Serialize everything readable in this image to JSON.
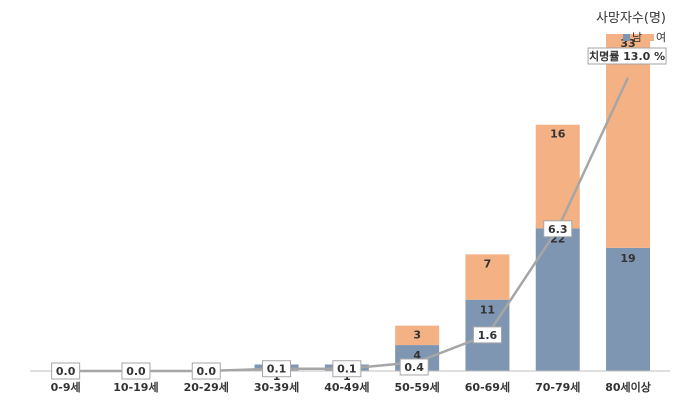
{
  "chart_data": {
    "type": "bar",
    "stacked": true,
    "secondary_line": true,
    "title": "사망자수(명)",
    "categories": [
      "0-9세",
      "10-19세",
      "20-29세",
      "30-39세",
      "40-49세",
      "50-59세",
      "60-69세",
      "70-79세",
      "80세이상"
    ],
    "series": [
      {
        "name": "남",
        "values": [
          0,
          0,
          0,
          1,
          1,
          4,
          11,
          22,
          19
        ],
        "color": "#7f96b2"
      },
      {
        "name": "여",
        "values": [
          0,
          0,
          0,
          0,
          0,
          3,
          7,
          16,
          33
        ],
        "color": "#f4b183"
      }
    ],
    "line_series": {
      "name": "치명률",
      "values": [
        0.0,
        0.0,
        0.0,
        0.1,
        0.1,
        0.4,
        1.6,
        6.3,
        13.0
      ],
      "labels": [
        "0.0",
        "0.0",
        "0.0",
        "0.1",
        "0.1",
        "0.4",
        "1.6",
        "6.3",
        "13.0 %"
      ],
      "color": "#a6a6a6"
    },
    "line_annotation": "치명률",
    "legend_position": "top-right",
    "ylim": [
      0,
      52
    ],
    "ylim_rate": [
      0,
      14
    ],
    "grid": false
  }
}
